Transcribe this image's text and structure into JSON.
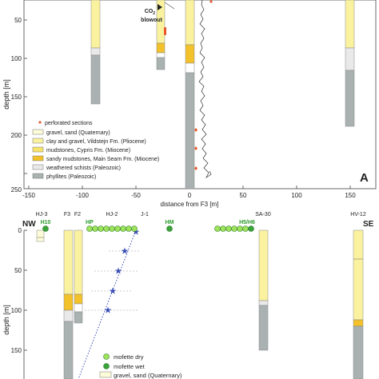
{
  "top_panel": {
    "y_axis": {
      "label": "depth [m]",
      "ticks": [
        "50",
        "100",
        "150",
        "200",
        "250"
      ]
    },
    "x_axis": {
      "label": "distance from F3 [m]",
      "ticks": [
        "-150",
        "-100",
        "-50",
        "0",
        "50",
        "100",
        "150"
      ]
    },
    "panel_label": "A",
    "co2_blowout": {
      "line1": "CO",
      "sub": "2",
      "line2": "blowout"
    },
    "legend": [
      {
        "label": "perforated sections",
        "kind": "diamond",
        "color": "#e8562a"
      },
      {
        "label": "gravel, sand (Quaternary)",
        "kind": "box",
        "color": "#fdfbd8"
      },
      {
        "label": "clay and gravel, Vildstejn Fm. (Pliocene)",
        "kind": "box",
        "color": "#fbf2a0"
      },
      {
        "label": "mudstones, Cypris Fm. (Miocene)",
        "kind": "box",
        "color": "#f7e26a"
      },
      {
        "label": "sandy mudstones, Main Seam Fm. (Miocene)",
        "kind": "box",
        "color": "#f3c12a"
      },
      {
        "label": "weathered schists (Paleozoic)",
        "kind": "box",
        "color": "#e9e9e9"
      },
      {
        "label": "phyllites (Paleozoic)",
        "kind": "box",
        "color": "#a9b1b1"
      }
    ]
  },
  "bottom_panel": {
    "end_labels": {
      "left": "NW",
      "right": "SE"
    },
    "wells": [
      "HJ-3",
      "F3",
      "F2",
      "HJ-2",
      "J-1",
      "SA-30",
      "HV-12"
    ],
    "mofettes": [
      "H10",
      "HP",
      "HM",
      "H5/H6"
    ],
    "y_axis": {
      "label": "depth [m]",
      "ticks": [
        "0",
        "50",
        "100",
        "150"
      ]
    },
    "legend": [
      {
        "label": "mofette dry",
        "kind": "circle",
        "color": "#9ee35a"
      },
      {
        "label": "mofette wet",
        "kind": "circle",
        "color": "#3aa23a"
      },
      {
        "label": "gravel, sand (Quaternary)",
        "kind": "box",
        "color": "#fdfbd8"
      }
    ]
  },
  "colors": {
    "gravel": "#fdfbd8",
    "clay": "#fbf2a0",
    "mudstone": "#f7e26a",
    "sandy": "#f3c12a",
    "weathered": "#e9e9e9",
    "phyllite": "#a9b1b1",
    "perforation": "#e8562a",
    "star": "#3a4fb5"
  }
}
